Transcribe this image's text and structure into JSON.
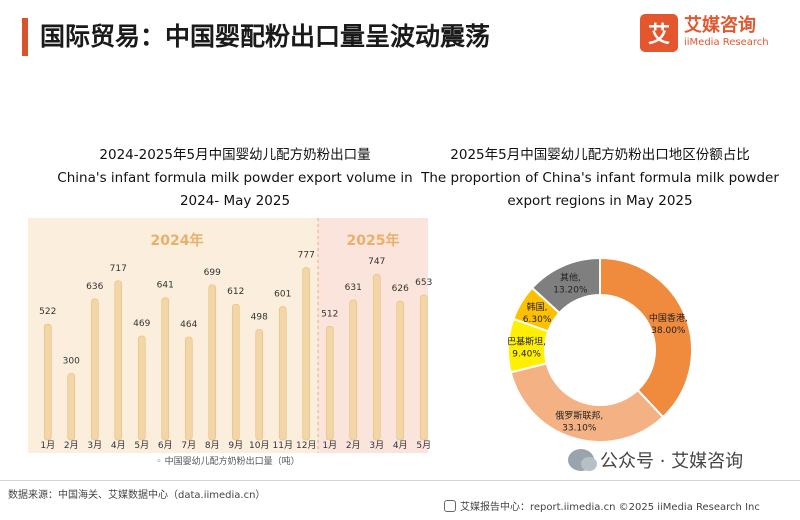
{
  "header": {
    "title": "国际贸易：中国婴配粉出口量呈波动震荡",
    "logo_mark": "艾",
    "logo_cn": "艾媒咨询",
    "logo_en": "iiMedia Research"
  },
  "left_chart": {
    "title_cn": "2024-2025年5月中国婴幼儿配方奶粉出口量",
    "title_en": "China's infant formula milk powder export volume in 2024- May 2025"
  },
  "right_chart": {
    "title_cn": "2025年5月中国婴幼儿配方奶粉出口地区份额占比",
    "title_en_1": "The proportion of China's infant formula milk powder",
    "title_en_2": "export regions in May 2025"
  },
  "chart_data": [
    {
      "type": "bar",
      "groups": [
        "2024年",
        "2025年"
      ],
      "categories": [
        "1月",
        "2月",
        "3月",
        "4月",
        "5月",
        "6月",
        "7月",
        "8月",
        "9月",
        "10月",
        "11月",
        "12月",
        "1月",
        "2月",
        "3月",
        "4月",
        "5月"
      ],
      "group_of_category": [
        0,
        0,
        0,
        0,
        0,
        0,
        0,
        0,
        0,
        0,
        0,
        0,
        1,
        1,
        1,
        1,
        1
      ],
      "values": [
        522,
        300,
        636,
        717,
        469,
        641,
        464,
        699,
        612,
        498,
        601,
        777,
        512,
        631,
        747,
        626,
        653
      ],
      "legend": "中国婴幼儿配方奶粉出口量（吨）",
      "ylim": [
        0,
        820
      ],
      "colors": {
        "bg_2024": "#fbeedd",
        "bg_2025": "#fbe4dc",
        "bar": "#f3d6a8",
        "bar_edge": "#e7be7a",
        "group_label": "#e8b068"
      }
    },
    {
      "type": "pie",
      "donut": true,
      "labels": [
        "中国香港,",
        "俄罗斯联邦,",
        "巴基斯坦,",
        "韩国,",
        "其他,"
      ],
      "value_labels": [
        "38.00%",
        "33.10%",
        "9.40%",
        "6.30%",
        "13.20%"
      ],
      "values": [
        38.0,
        33.1,
        9.4,
        6.3,
        13.2
      ],
      "colors": [
        "#f08a3c",
        "#f4b183",
        "#ffef00",
        "#ffc000",
        "#7f7f7f"
      ]
    }
  ],
  "footer": {
    "source": "数据来源：中国海关、艾媒数据中心（data.iimedia.cn）",
    "watermark": "公众号 · 艾媒咨询",
    "right": "艾媒报告中心：report.iimedia.cn   ©2025  iiMedia Research  Inc"
  }
}
